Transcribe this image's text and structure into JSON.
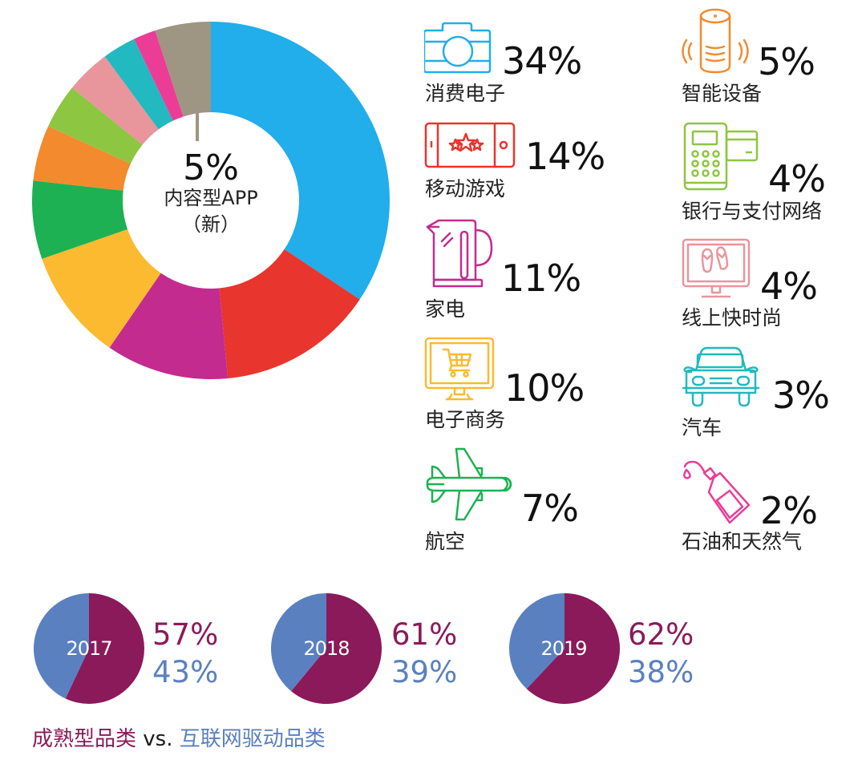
{
  "chart_data": [
    {
      "type": "pie",
      "variant": "donut",
      "title": "",
      "center_label": {
        "value": "5%",
        "label": "内容型APP",
        "sublabel": "（新）"
      },
      "categories": [
        "消费电子",
        "移动游戏",
        "家电",
        "电子商务",
        "航空",
        "智能设备",
        "银行与支付网络",
        "线上快时尚",
        "汽车",
        "石油和天然气",
        "内容型APP（新）"
      ],
      "values": [
        34,
        14,
        11,
        10,
        7,
        5,
        4,
        4,
        3,
        2,
        5
      ],
      "colors": [
        "#21aeea",
        "#e8352d",
        "#c42b8f",
        "#fcba31",
        "#1db153",
        "#f38a2e",
        "#8dc641",
        "#e8959c",
        "#22b9c0",
        "#eb3d96",
        "#9e9583"
      ],
      "legend_position": "right"
    },
    {
      "type": "pie",
      "title": "2017",
      "categories": [
        "成熟型品类",
        "互联网驱动品类"
      ],
      "values": [
        57,
        43
      ],
      "colors": [
        "#8b1a5a",
        "#5a80c0"
      ]
    },
    {
      "type": "pie",
      "title": "2018",
      "categories": [
        "成熟型品类",
        "互联网驱动品类"
      ],
      "values": [
        61,
        39
      ],
      "colors": [
        "#8b1a5a",
        "#5a80c0"
      ]
    },
    {
      "type": "pie",
      "title": "2019",
      "categories": [
        "成熟型品类",
        "互联网驱动品类"
      ],
      "values": [
        62,
        38
      ],
      "colors": [
        "#8b1a5a",
        "#5a80c0"
      ]
    }
  ],
  "donut": {
    "center_pct": "5%",
    "center_label": "内容型APP",
    "center_sub": "（新）"
  },
  "legend": {
    "left": [
      {
        "pct": "34%",
        "label": "消费电子",
        "icon": "camera-icon",
        "color": "#21aeea"
      },
      {
        "pct": "14%",
        "label": "移动游戏",
        "icon": "mobile-game-icon",
        "color": "#e8352d"
      },
      {
        "pct": "11%",
        "label": "家电",
        "icon": "kettle-icon",
        "color": "#c42b8f"
      },
      {
        "pct": "10%",
        "label": "电子商务",
        "icon": "shopping-cart-monitor-icon",
        "color": "#fcba31"
      },
      {
        "pct": "7%",
        "label": "航空",
        "icon": "airplane-icon",
        "color": "#1db153"
      }
    ],
    "right": [
      {
        "pct": "5%",
        "label": "智能设备",
        "icon": "smart-speaker-icon",
        "color": "#f38a2e"
      },
      {
        "pct": "4%",
        "label": "银行与支付网络",
        "icon": "payment-terminal-icon",
        "color": "#8dc641"
      },
      {
        "pct": "4%",
        "label": "线上快时尚",
        "icon": "flip-flops-monitor-icon",
        "color": "#e8959c"
      },
      {
        "pct": "3%",
        "label": "汽车",
        "icon": "car-icon",
        "color": "#22b9c0"
      },
      {
        "pct": "2%",
        "label": "石油和天然气",
        "icon": "oil-can-icon",
        "color": "#eb3d96"
      }
    ]
  },
  "pies": [
    {
      "year": "2017",
      "a": "57%",
      "b": "43%"
    },
    {
      "year": "2018",
      "a": "61%",
      "b": "39%"
    },
    {
      "year": "2019",
      "a": "62%",
      "b": "38%"
    }
  ],
  "caption": {
    "a": "成熟型品类",
    "vs": " vs. ",
    "b": "互联网驱动品类"
  }
}
